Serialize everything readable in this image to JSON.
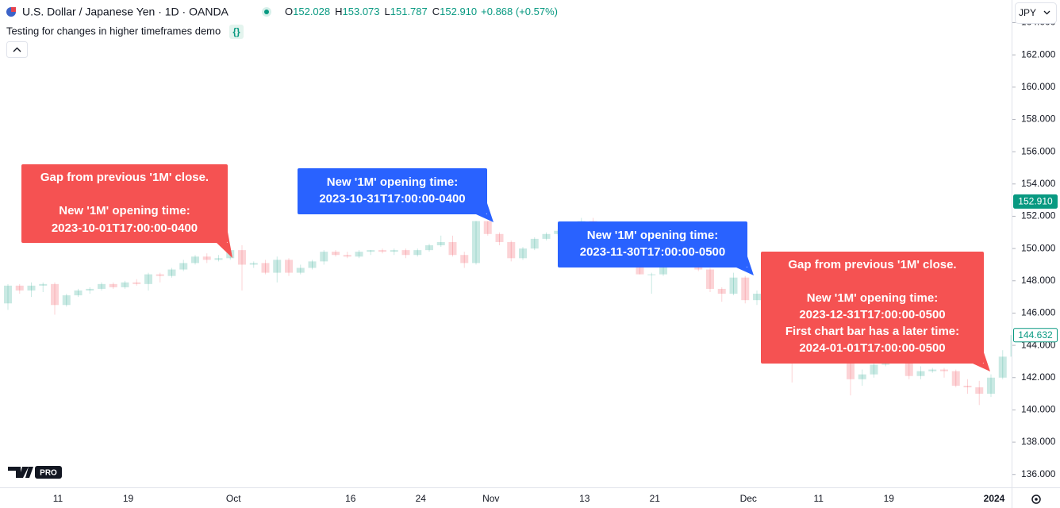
{
  "header": {
    "symbol": "U.S. Dollar / Japanese Yen · 1D · OANDA",
    "ohlc": [
      {
        "key": "O",
        "value": "152.028"
      },
      {
        "key": "H",
        "value": "153.073"
      },
      {
        "key": "L",
        "value": "151.787"
      },
      {
        "key": "C",
        "value": "152.910"
      }
    ],
    "change": "+0.868 (+0.57%)",
    "indicator": "Testing for changes in higher timeframes demo",
    "currency": "JPY",
    "badge": "PRO"
  },
  "chart_data": {
    "type": "candlestick",
    "up_color": "#089981",
    "down_color": "#f23645",
    "categories": [
      null,
      null,
      null,
      null,
      "11",
      null,
      null,
      null,
      null,
      null,
      "19",
      null,
      null,
      null,
      null,
      null,
      null,
      null,
      null,
      "Oct",
      null,
      null,
      null,
      null,
      null,
      null,
      null,
      null,
      null,
      "16",
      null,
      null,
      null,
      null,
      null,
      "24",
      null,
      null,
      null,
      null,
      null,
      "Nov",
      null,
      null,
      null,
      null,
      null,
      null,
      null,
      "13",
      null,
      null,
      null,
      null,
      null,
      "21",
      null,
      null,
      null,
      null,
      null,
      null,
      null,
      "Dec",
      null,
      null,
      null,
      null,
      null,
      "11",
      null,
      null,
      null,
      null,
      null,
      "19",
      null,
      null,
      null,
      null,
      null,
      null,
      null,
      null,
      "2024",
      null,
      null
    ],
    "open": [
      146.6,
      147.7,
      147.4,
      147.7,
      147.8,
      146.5,
      147.1,
      147.4,
      147.5,
      147.8,
      147.6,
      147.9,
      147.8,
      148.4,
      148.3,
      148.7,
      149.1,
      149.5,
      149.3,
      149.4,
      149.9,
      149.0,
      149.1,
      148.5,
      149.3,
      148.5,
      148.8,
      149.2,
      149.8,
      149.6,
      149.5,
      149.8,
      149.9,
      149.8,
      149.9,
      149.6,
      149.9,
      150.2,
      150.4,
      149.6,
      149.1,
      151.7,
      150.9,
      150.4,
      149.4,
      150.0,
      150.6,
      150.9,
      151.1,
      151.5,
      151.7,
      150.4,
      151.3,
      150.7,
      149.6,
      148.4,
      148.4,
      149.5,
      149.5,
      149.4,
      148.7,
      147.5,
      147.2,
      148.2,
      146.8,
      147.2,
      147.1,
      147.3,
      144.1,
      144.9,
      146.2,
      145.4,
      142.9,
      141.9,
      142.2,
      142.8,
      143.6,
      143.5,
      142.1,
      142.4,
      142.5,
      142.4,
      141.5,
      141.4,
      141.0,
      142.0,
      143.3
    ],
    "high": [
      147.8,
      147.8,
      147.9,
      147.9,
      147.9,
      147.2,
      147.5,
      147.6,
      147.9,
      147.9,
      148.0,
      148.1,
      148.5,
      148.5,
      148.8,
      149.3,
      149.6,
      149.7,
      149.6,
      150.0,
      150.2,
      149.2,
      149.3,
      149.5,
      149.4,
      149.0,
      149.3,
      149.9,
      149.9,
      149.8,
      149.9,
      149.9,
      150.0,
      150.0,
      150.0,
      150.0,
      150.3,
      150.8,
      150.8,
      149.8,
      151.7,
      151.7,
      151.0,
      150.5,
      150.1,
      150.7,
      151.0,
      151.2,
      151.6,
      151.9,
      151.9,
      151.4,
      151.4,
      150.8,
      149.7,
      148.5,
      149.7,
      149.7,
      149.7,
      149.6,
      148.8,
      147.6,
      148.5,
      148.3,
      147.4,
      147.4,
      147.5,
      147.4,
      145.2,
      146.6,
      146.6,
      145.7,
      143.3,
      142.5,
      143.0,
      144.9,
      143.8,
      143.7,
      142.7,
      142.6,
      142.6,
      142.5,
      141.9,
      141.8,
      142.2,
      143.7,
      144.8
    ],
    "low": [
      146.2,
      147.2,
      147.0,
      147.3,
      145.9,
      146.4,
      147.0,
      147.2,
      147.4,
      147.5,
      147.5,
      147.7,
      147.4,
      147.9,
      148.2,
      148.6,
      149.0,
      149.1,
      149.2,
      149.3,
      147.4,
      148.8,
      148.4,
      147.9,
      148.3,
      148.4,
      148.7,
      149.0,
      149.5,
      149.4,
      149.4,
      149.6,
      149.7,
      149.6,
      149.4,
      149.5,
      149.8,
      150.1,
      149.5,
      148.8,
      149.0,
      150.8,
      150.2,
      149.2,
      149.3,
      149.9,
      150.5,
      150.8,
      151.0,
      151.3,
      150.2,
      150.2,
      150.6,
      149.4,
      148.4,
      147.2,
      148.3,
      149.3,
      149.2,
      148.6,
      147.3,
      146.7,
      147.1,
      146.6,
      146.5,
      146.8,
      146.9,
      141.7,
      143.5,
      144.8,
      145.0,
      142.9,
      140.9,
      141.5,
      142.0,
      142.7,
      143.2,
      141.9,
      141.9,
      142.3,
      142.0,
      141.4,
      141.0,
      140.3,
      140.8,
      141.9,
      143.1
    ],
    "close": [
      147.7,
      147.4,
      147.7,
      147.8,
      146.5,
      147.1,
      147.4,
      147.5,
      147.8,
      147.6,
      147.9,
      147.8,
      148.4,
      148.3,
      148.7,
      149.1,
      149.5,
      149.3,
      149.4,
      149.9,
      149.0,
      149.1,
      148.5,
      149.3,
      148.5,
      148.8,
      149.2,
      149.8,
      149.6,
      149.5,
      149.8,
      149.9,
      149.8,
      149.9,
      149.6,
      149.9,
      150.2,
      150.4,
      149.6,
      149.1,
      151.7,
      150.9,
      150.4,
      149.4,
      150.0,
      150.6,
      150.9,
      151.1,
      151.5,
      151.7,
      150.4,
      151.3,
      150.7,
      149.6,
      148.4,
      148.4,
      149.5,
      149.5,
      149.4,
      148.7,
      147.5,
      147.2,
      148.2,
      146.8,
      147.2,
      147.1,
      147.3,
      144.1,
      144.9,
      146.2,
      145.4,
      142.9,
      141.9,
      142.2,
      142.8,
      143.6,
      143.5,
      142.1,
      142.4,
      142.5,
      142.4,
      141.5,
      141.4,
      141.0,
      142.0,
      143.3,
      144.632
    ],
    "ylim": [
      135.2,
      165.4
    ],
    "yticks": [
      {
        "value": 136,
        "label": "136.000"
      },
      {
        "value": 138,
        "label": "138.000"
      },
      {
        "value": 140,
        "label": "140.000"
      },
      {
        "value": 142,
        "label": "142.000"
      },
      {
        "value": 144,
        "label": "144.000"
      },
      {
        "value": 146,
        "label": "146.000"
      },
      {
        "value": 148,
        "label": "148.000"
      },
      {
        "value": 150,
        "label": "150.000"
      },
      {
        "value": 152,
        "label": "152.000"
      },
      {
        "value": 154,
        "label": "154.000"
      },
      {
        "value": 156,
        "label": "156.000"
      },
      {
        "value": 158,
        "label": "158.000"
      },
      {
        "value": 160,
        "label": "160.000"
      },
      {
        "value": 162,
        "label": "162.000"
      },
      {
        "value": 164,
        "label": "164.000"
      }
    ],
    "price_tags": [
      {
        "value": 152.91,
        "label": "152.910",
        "color": "#089981"
      },
      {
        "value": 144.632,
        "label": "144.632",
        "color": "#089981"
      }
    ],
    "annotations": [
      {
        "color": "#f55252",
        "lines": [
          "Gap from previous '1M' close.",
          "New '1M' opening time:",
          "2023-10-01T17:00:00-0400"
        ]
      },
      {
        "color": "#2962ff",
        "lines": [
          "New '1M' opening time:",
          "2023-10-31T17:00:00-0400"
        ]
      },
      {
        "color": "#2962ff",
        "lines": [
          "New '1M' opening time:",
          "2023-11-30T17:00:00-0500"
        ]
      },
      {
        "color": "#f55252",
        "lines": [
          "Gap from previous '1M' close.",
          "New '1M' opening time:",
          "2023-12-31T17:00:00-0500",
          "First chart bar has a later time:",
          "2024-01-01T17:00:00-0500"
        ]
      }
    ]
  }
}
